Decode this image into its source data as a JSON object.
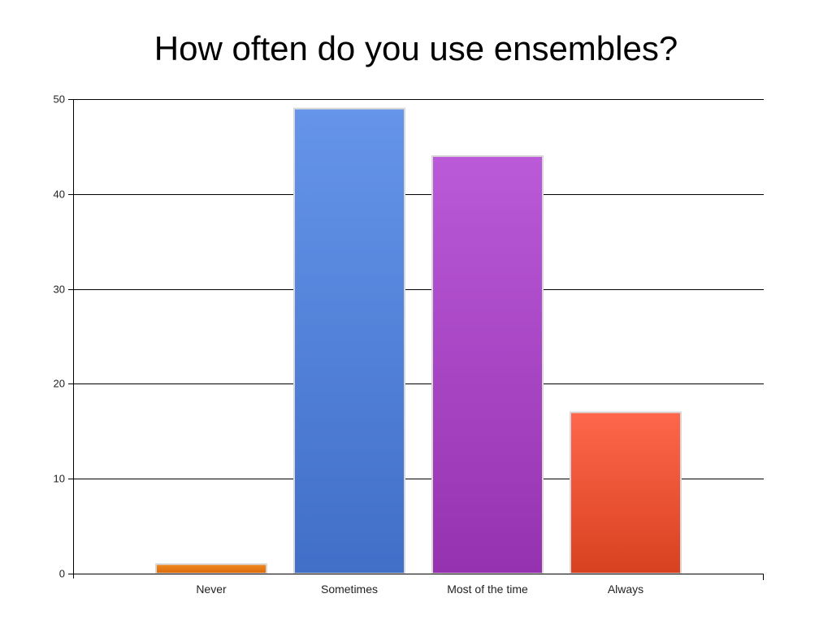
{
  "chart_data": {
    "type": "bar",
    "title": "How often do you use ensembles?",
    "xlabel": "",
    "ylabel": "",
    "categories": [
      "Never",
      "Sometimes",
      "Most of the time",
      "Always"
    ],
    "values": [
      1,
      49,
      44,
      17
    ],
    "ylim": [
      0,
      50
    ],
    "yticks": [
      "0",
      "10",
      "20",
      "30",
      "40",
      "50"
    ],
    "grid": true,
    "legend": "none",
    "colors": [
      {
        "top": "#F08A1E",
        "bottom": "#D9690C"
      },
      {
        "top": "#6594EA",
        "bottom": "#416FC8"
      },
      {
        "top": "#BA5AD8",
        "bottom": "#9532B0"
      },
      {
        "top": "#FF674C",
        "bottom": "#D8411F"
      }
    ]
  }
}
